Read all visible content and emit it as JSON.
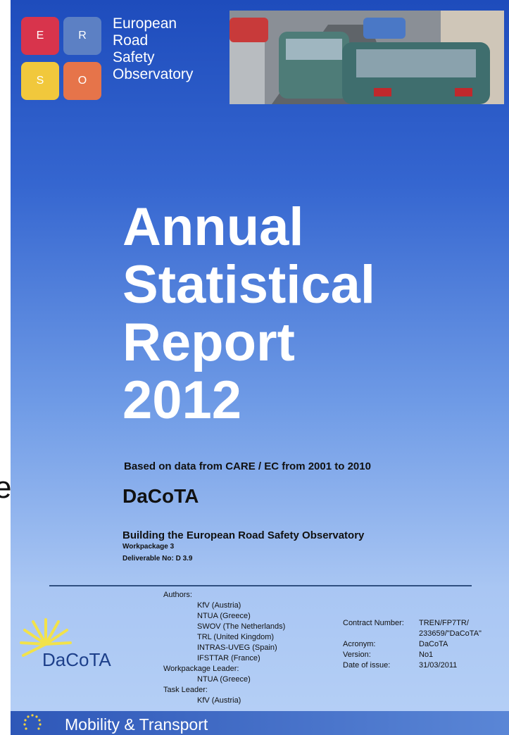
{
  "header": {
    "logo_letters": [
      "E",
      "R",
      "S",
      "O"
    ],
    "logo_text": [
      "European",
      "Road",
      "Safety",
      "Observatory"
    ]
  },
  "title": [
    "Annual",
    "Statistical",
    "Report",
    "2012"
  ],
  "subtitle": "Based on data from CARE / EC from 2001 to 2010",
  "edge_fragment": "e",
  "project": {
    "name": "DaCoTA",
    "full_name": "Building the European Road Safety Observatory",
    "workpackage": "Workpackage 3",
    "deliverable": "Deliverable No: D 3.9"
  },
  "authors": {
    "label": "Authors:",
    "list": [
      "KfV (Austria)",
      "NTUA (Greece)",
      "SWOV (The Netherlands)",
      "TRL (United Kingdom)",
      "INTRAS-UVEG (Spain)",
      "IFSTTAR (France)"
    ],
    "workpackage_leader_label": "Workpackage Leader:",
    "workpackage_leader": "NTUA (Greece)",
    "task_leader_label": "Task Leader:",
    "task_leader": "KfV (Austria)"
  },
  "contract": [
    {
      "label": "Contract Number:",
      "value": [
        "TREN/FP7TR/",
        "233659/\"DaCoTA\""
      ]
    },
    {
      "label": "Acronym:",
      "value": [
        "DaCoTA"
      ]
    },
    {
      "label": "Version:",
      "value": [
        "No1"
      ]
    },
    {
      "label": "Date of issue:",
      "value": [
        "31/03/2011"
      ]
    }
  ],
  "logo": "DaCoTA",
  "footer": "Mobility & Transport"
}
